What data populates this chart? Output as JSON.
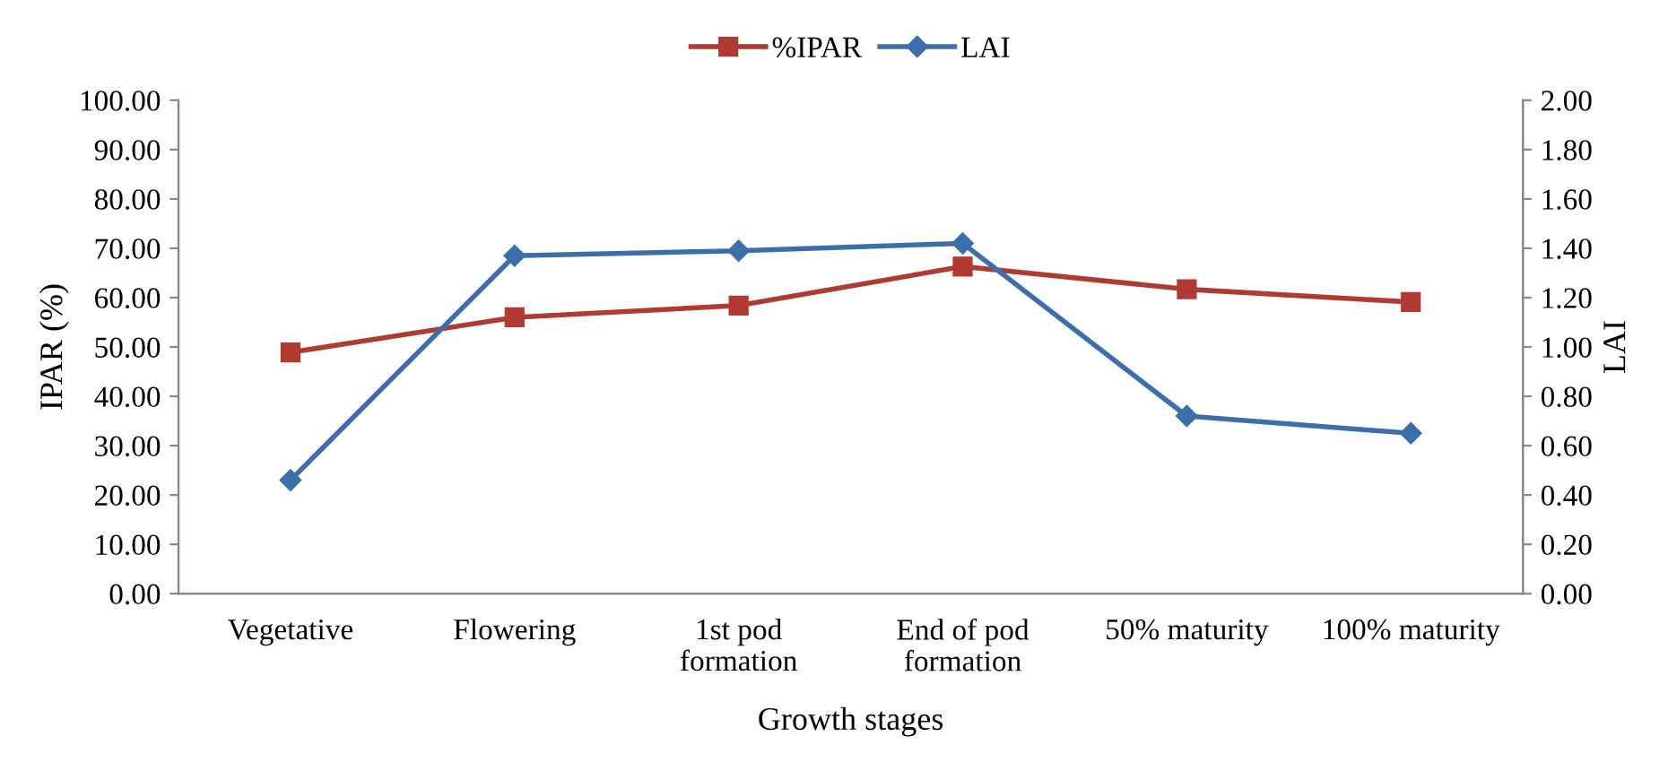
{
  "chart_data": {
    "type": "line",
    "xlabel": "Growth stages",
    "ylabel": "IPAR (%)",
    "y2label": "LAI",
    "categories": [
      "Vegetative",
      "Flowering",
      "1st pod\nformation",
      "End of pod\nformation",
      "50% maturity",
      "100% maturity"
    ],
    "series": [
      {
        "name": "%IPAR",
        "color": "#b03a32",
        "marker": "square",
        "values": [
          48.9,
          56.0,
          58.4,
          66.3,
          61.7,
          59.1
        ]
      },
      {
        "name": "LAI",
        "color": "#3b6eaa",
        "marker": "diamond",
        "axis": "y2",
        "values": [
          0.46,
          1.37,
          1.39,
          1.42,
          0.72,
          0.65
        ]
      }
    ],
    "ylim": [
      0,
      100
    ],
    "yticks": [
      {
        "value": 0,
        "label": "0.00"
      },
      {
        "value": 10,
        "label": "10.00"
      },
      {
        "value": 20,
        "label": "20.00"
      },
      {
        "value": 30,
        "label": "30.00"
      },
      {
        "value": 40,
        "label": "40.00"
      },
      {
        "value": 50,
        "label": "50.00"
      },
      {
        "value": 60,
        "label": "60.00"
      },
      {
        "value": 70,
        "label": "70.00"
      },
      {
        "value": 80,
        "label": "80.00"
      },
      {
        "value": 90,
        "label": "90.00"
      },
      {
        "value": 100,
        "label": "100.00"
      }
    ],
    "y2lim": [
      0,
      2
    ],
    "y2ticks": [
      {
        "value": 0,
        "label": "0.00"
      },
      {
        "value": 0.2,
        "label": "0.20"
      },
      {
        "value": 0.4,
        "label": "0.40"
      },
      {
        "value": 0.6,
        "label": "0.60"
      },
      {
        "value": 0.8,
        "label": "0.80"
      },
      {
        "value": 1.0,
        "label": "1.00"
      },
      {
        "value": 1.2,
        "label": "1.20"
      },
      {
        "value": 1.4,
        "label": "1.40"
      },
      {
        "value": 1.6,
        "label": "1.60"
      },
      {
        "value": 1.8,
        "label": "1.80"
      },
      {
        "value": 2.0,
        "label": "2.00"
      }
    ],
    "grid": false,
    "legend": "top",
    "line_style": "solid"
  }
}
